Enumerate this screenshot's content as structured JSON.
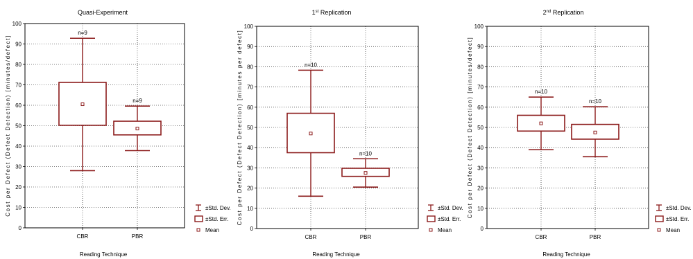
{
  "chart_data": [
    {
      "type": "boxplot",
      "title": "Quasi-Experiment",
      "title_sup": "",
      "title_rest": "",
      "xlabel": "Reading Technique",
      "ylabel": "Cost per Defect (Defect Detection) [minutes/defect]",
      "ylim": [
        0,
        100
      ],
      "yticks": [
        0,
        10,
        20,
        30,
        40,
        50,
        60,
        70,
        80,
        90,
        100
      ],
      "grid": true,
      "categories": [
        "CBR",
        "PBR"
      ],
      "stats": [
        {
          "category": "CBR",
          "n_label": "n=9",
          "mean": 60.5,
          "se_low": 50.2,
          "se_high": 71.2,
          "sd_low": 28.0,
          "sd_high": 92.8
        },
        {
          "category": "PBR",
          "n_label": "n=9",
          "mean": 48.6,
          "se_low": 45.5,
          "se_high": 52.2,
          "sd_low": 37.8,
          "sd_high": 59.6
        }
      ],
      "color": "#8b1a1a"
    },
    {
      "type": "boxplot",
      "title": "1",
      "title_sup": "st",
      "title_rest": " Replication",
      "xlabel": "Reading Technique",
      "ylabel": "Cost per Defect (Defect Detection) [minutes per defect]",
      "ylim": [
        0,
        100
      ],
      "yticks": [
        0,
        10,
        20,
        30,
        40,
        50,
        60,
        70,
        80,
        90,
        100
      ],
      "grid": true,
      "categories": [
        "CBR",
        "PBR"
      ],
      "stats": [
        {
          "category": "CBR",
          "n_label": "n=10",
          "mean": 47.0,
          "se_low": 37.5,
          "se_high": 57.0,
          "sd_low": 16.0,
          "sd_high": 78.3
        },
        {
          "category": "PBR",
          "n_label": "n=10",
          "mean": 27.5,
          "se_low": 25.8,
          "se_high": 29.8,
          "sd_low": 20.5,
          "sd_high": 34.5
        }
      ],
      "color": "#8b1a1a"
    },
    {
      "type": "boxplot",
      "title": "2",
      "title_sup": "nd",
      "title_rest": " Replication",
      "xlabel": "Reading Technique",
      "ylabel": "Cost per Defect (Defect Detection) [minutes/defect]",
      "ylim": [
        0,
        100
      ],
      "yticks": [
        0,
        10,
        20,
        30,
        40,
        50,
        60,
        70,
        80,
        90,
        100
      ],
      "grid": true,
      "categories": [
        "CBR",
        "PBR"
      ],
      "stats": [
        {
          "category": "CBR",
          "n_label": "n=10",
          "mean": 52.0,
          "se_low": 48.2,
          "se_high": 56.0,
          "sd_low": 39.0,
          "sd_high": 65.0
        },
        {
          "category": "PBR",
          "n_label": "n=10",
          "mean": 47.5,
          "se_low": 44.2,
          "se_high": 51.5,
          "sd_low": 35.5,
          "sd_high": 60.2
        }
      ],
      "color": "#8b1a1a"
    }
  ],
  "legend": {
    "items": [
      {
        "label": "±Std. Dev.",
        "symbol": "whisker-icon"
      },
      {
        "label": "±Std. Err.",
        "symbol": "box-icon"
      },
      {
        "label": "Mean",
        "symbol": "mean-marker-icon"
      }
    ]
  }
}
